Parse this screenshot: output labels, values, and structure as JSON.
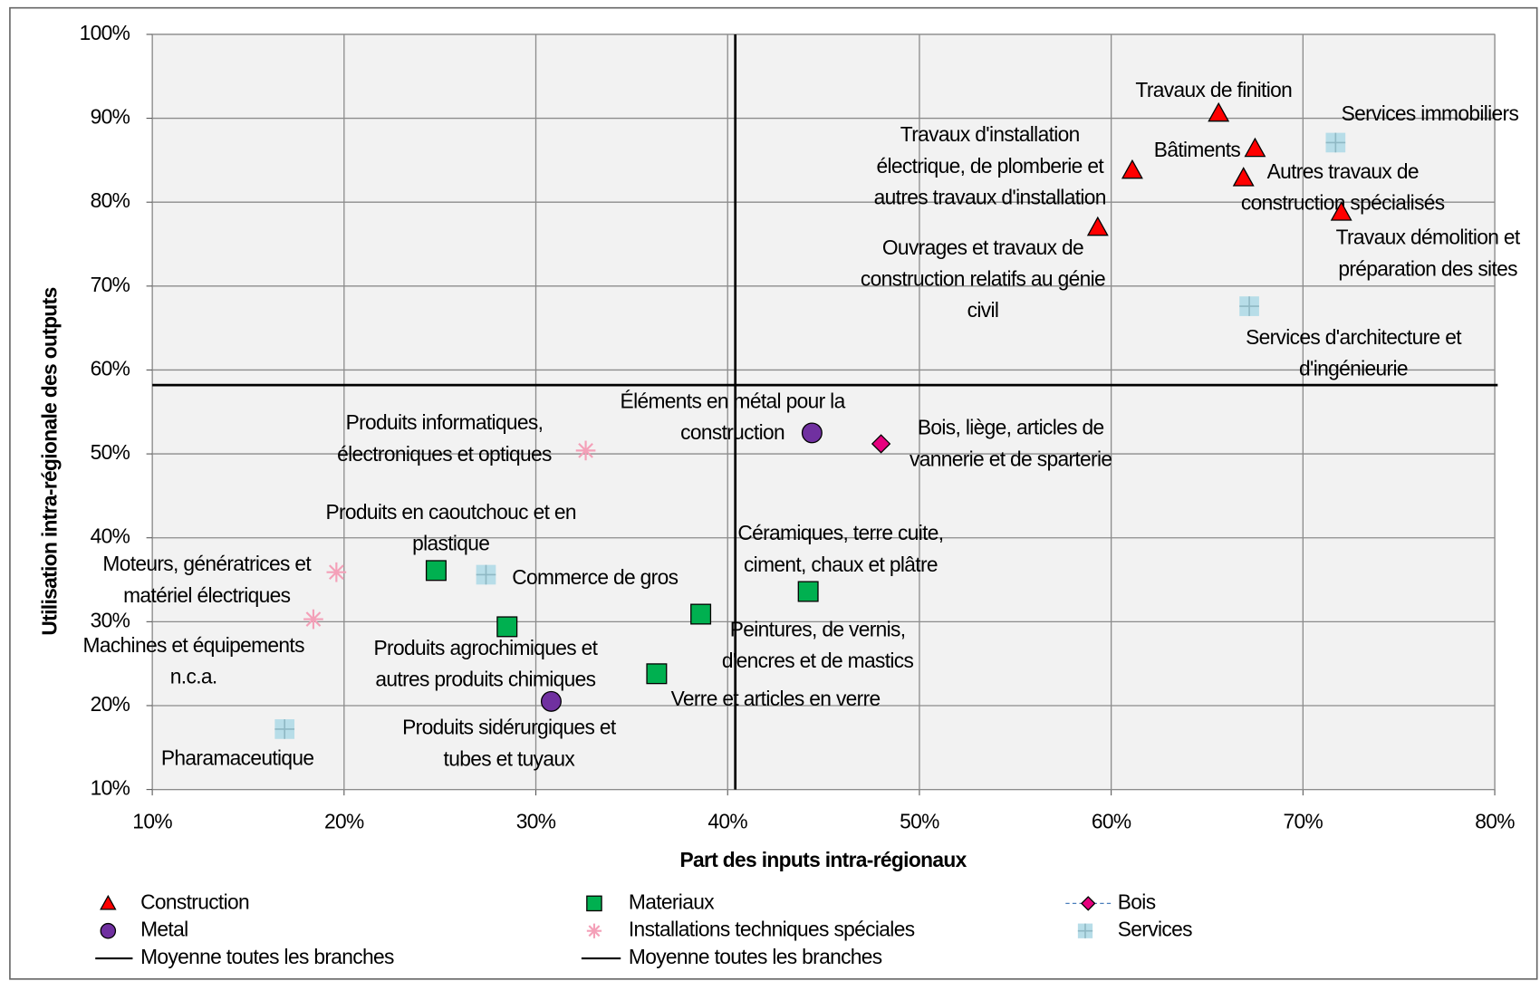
{
  "chart_data": {
    "type": "scatter",
    "x_label": "Part des inputs intra-régionaux",
    "y_label": "Utilisation intra-régionale des outputs",
    "xlim": [
      10,
      80
    ],
    "ylim": [
      10,
      100
    ],
    "xticks": [
      {
        "value": 10,
        "label": "10%"
      },
      {
        "value": 20,
        "label": "20%"
      },
      {
        "value": 30,
        "label": "30%"
      },
      {
        "value": 40,
        "label": "40%"
      },
      {
        "value": 50,
        "label": "50%"
      },
      {
        "value": 60,
        "label": "60%"
      },
      {
        "value": 70,
        "label": "70%"
      },
      {
        "value": 80,
        "label": "80%"
      }
    ],
    "yticks": [
      {
        "value": 10,
        "label": "10%"
      },
      {
        "value": 20,
        "label": "20%"
      },
      {
        "value": 30,
        "label": "30%"
      },
      {
        "value": 40,
        "label": "40%"
      },
      {
        "value": 50,
        "label": "50%"
      },
      {
        "value": 60,
        "label": "60%"
      },
      {
        "value": 70,
        "label": "70%"
      },
      {
        "value": 80,
        "label": "80%"
      },
      {
        "value": 90,
        "label": "90%"
      },
      {
        "value": 100,
        "label": "100%"
      }
    ],
    "grid": true,
    "series": [
      {
        "name": "Construction",
        "color": "#ff0000",
        "marker": "triangle",
        "x": [
          65.6,
          67.5,
          66.9,
          72.0,
          61.1,
          59.3
        ],
        "values": [
          90.6,
          86.4,
          82.9,
          78.8,
          83.8,
          77.0
        ],
        "labels": [
          [
            "Travaux de finition"
          ],
          [
            "Bâtiments"
          ],
          [
            "Autres travaux de",
            "construction spécialisés"
          ],
          [
            "Travaux démolition et",
            "préparation des sites"
          ],
          [
            "Travaux d'installation",
            "électrique, de plomberie et",
            "autres travaux d'installation"
          ],
          [
            "Ouvrages et travaux de",
            "construction relatifs au génie",
            "civil"
          ]
        ]
      },
      {
        "name": "Metal",
        "color": "#7030a0",
        "marker": "circle",
        "x": [
          44.4,
          30.8
        ],
        "values": [
          52.5,
          20.5
        ],
        "labels": [
          [
            "Éléments en métal pour la",
            "construction"
          ],
          [
            "Produits sidérurgiques et",
            "tubes et tuyaux"
          ]
        ]
      },
      {
        "name": "Bois",
        "color": "#e6007e",
        "marker": "diamond",
        "x": [
          48.0
        ],
        "values": [
          51.2
        ],
        "labels": [
          [
            "Bois, liège, articles de",
            "vannerie et de sparterie"
          ]
        ]
      },
      {
        "name": "Materiaux",
        "color": "#00b050",
        "marker": "square",
        "x": [
          24.8,
          28.5,
          38.6,
          44.2,
          36.3
        ],
        "values": [
          36.1,
          29.4,
          30.9,
          33.6,
          23.8
        ],
        "labels": [
          [
            "Produits en caoutchouc et en",
            "plastique"
          ],
          [
            "Produits agrochimiques et",
            "autres produits chimiques"
          ],
          [
            "Peintures, de vernis,",
            "d'encres et de mastics"
          ],
          [
            "Céramiques, terre cuite,",
            "ciment, chaux et plâtre"
          ],
          [
            "Verre et articles en verre"
          ]
        ]
      },
      {
        "name": "Installations techniques spéciales",
        "color": "#f4a0b8",
        "marker": "asterisk",
        "x": [
          32.6,
          19.6,
          18.4
        ],
        "values": [
          50.4,
          35.9,
          30.3
        ],
        "labels": [
          [
            "Produits informatiques,",
            "électroniques et optiques"
          ],
          [
            "Moteurs, génératrices et",
            "matériel électriques"
          ],
          [
            "Machines et équipements",
            "n.c.a."
          ]
        ]
      },
      {
        "name": "Services",
        "color": "#b7dde8",
        "marker": "plus",
        "x": [
          71.7,
          67.2,
          27.4,
          16.9
        ],
        "values": [
          87.1,
          67.6,
          35.6,
          17.2
        ],
        "labels": [
          [
            "Services immobiliers"
          ],
          [
            "Services d'architecture et",
            "d'ingénieurie"
          ],
          [
            "Commerce de gros"
          ],
          [
            "Pharamaceutique"
          ]
        ]
      }
    ],
    "mean_lines": [
      {
        "name": "Moyenne toutes les branches",
        "axis": "x",
        "value": 40.4
      },
      {
        "name": "Moyenne toutes les branches",
        "axis": "y",
        "value": 58.2
      }
    ]
  }
}
